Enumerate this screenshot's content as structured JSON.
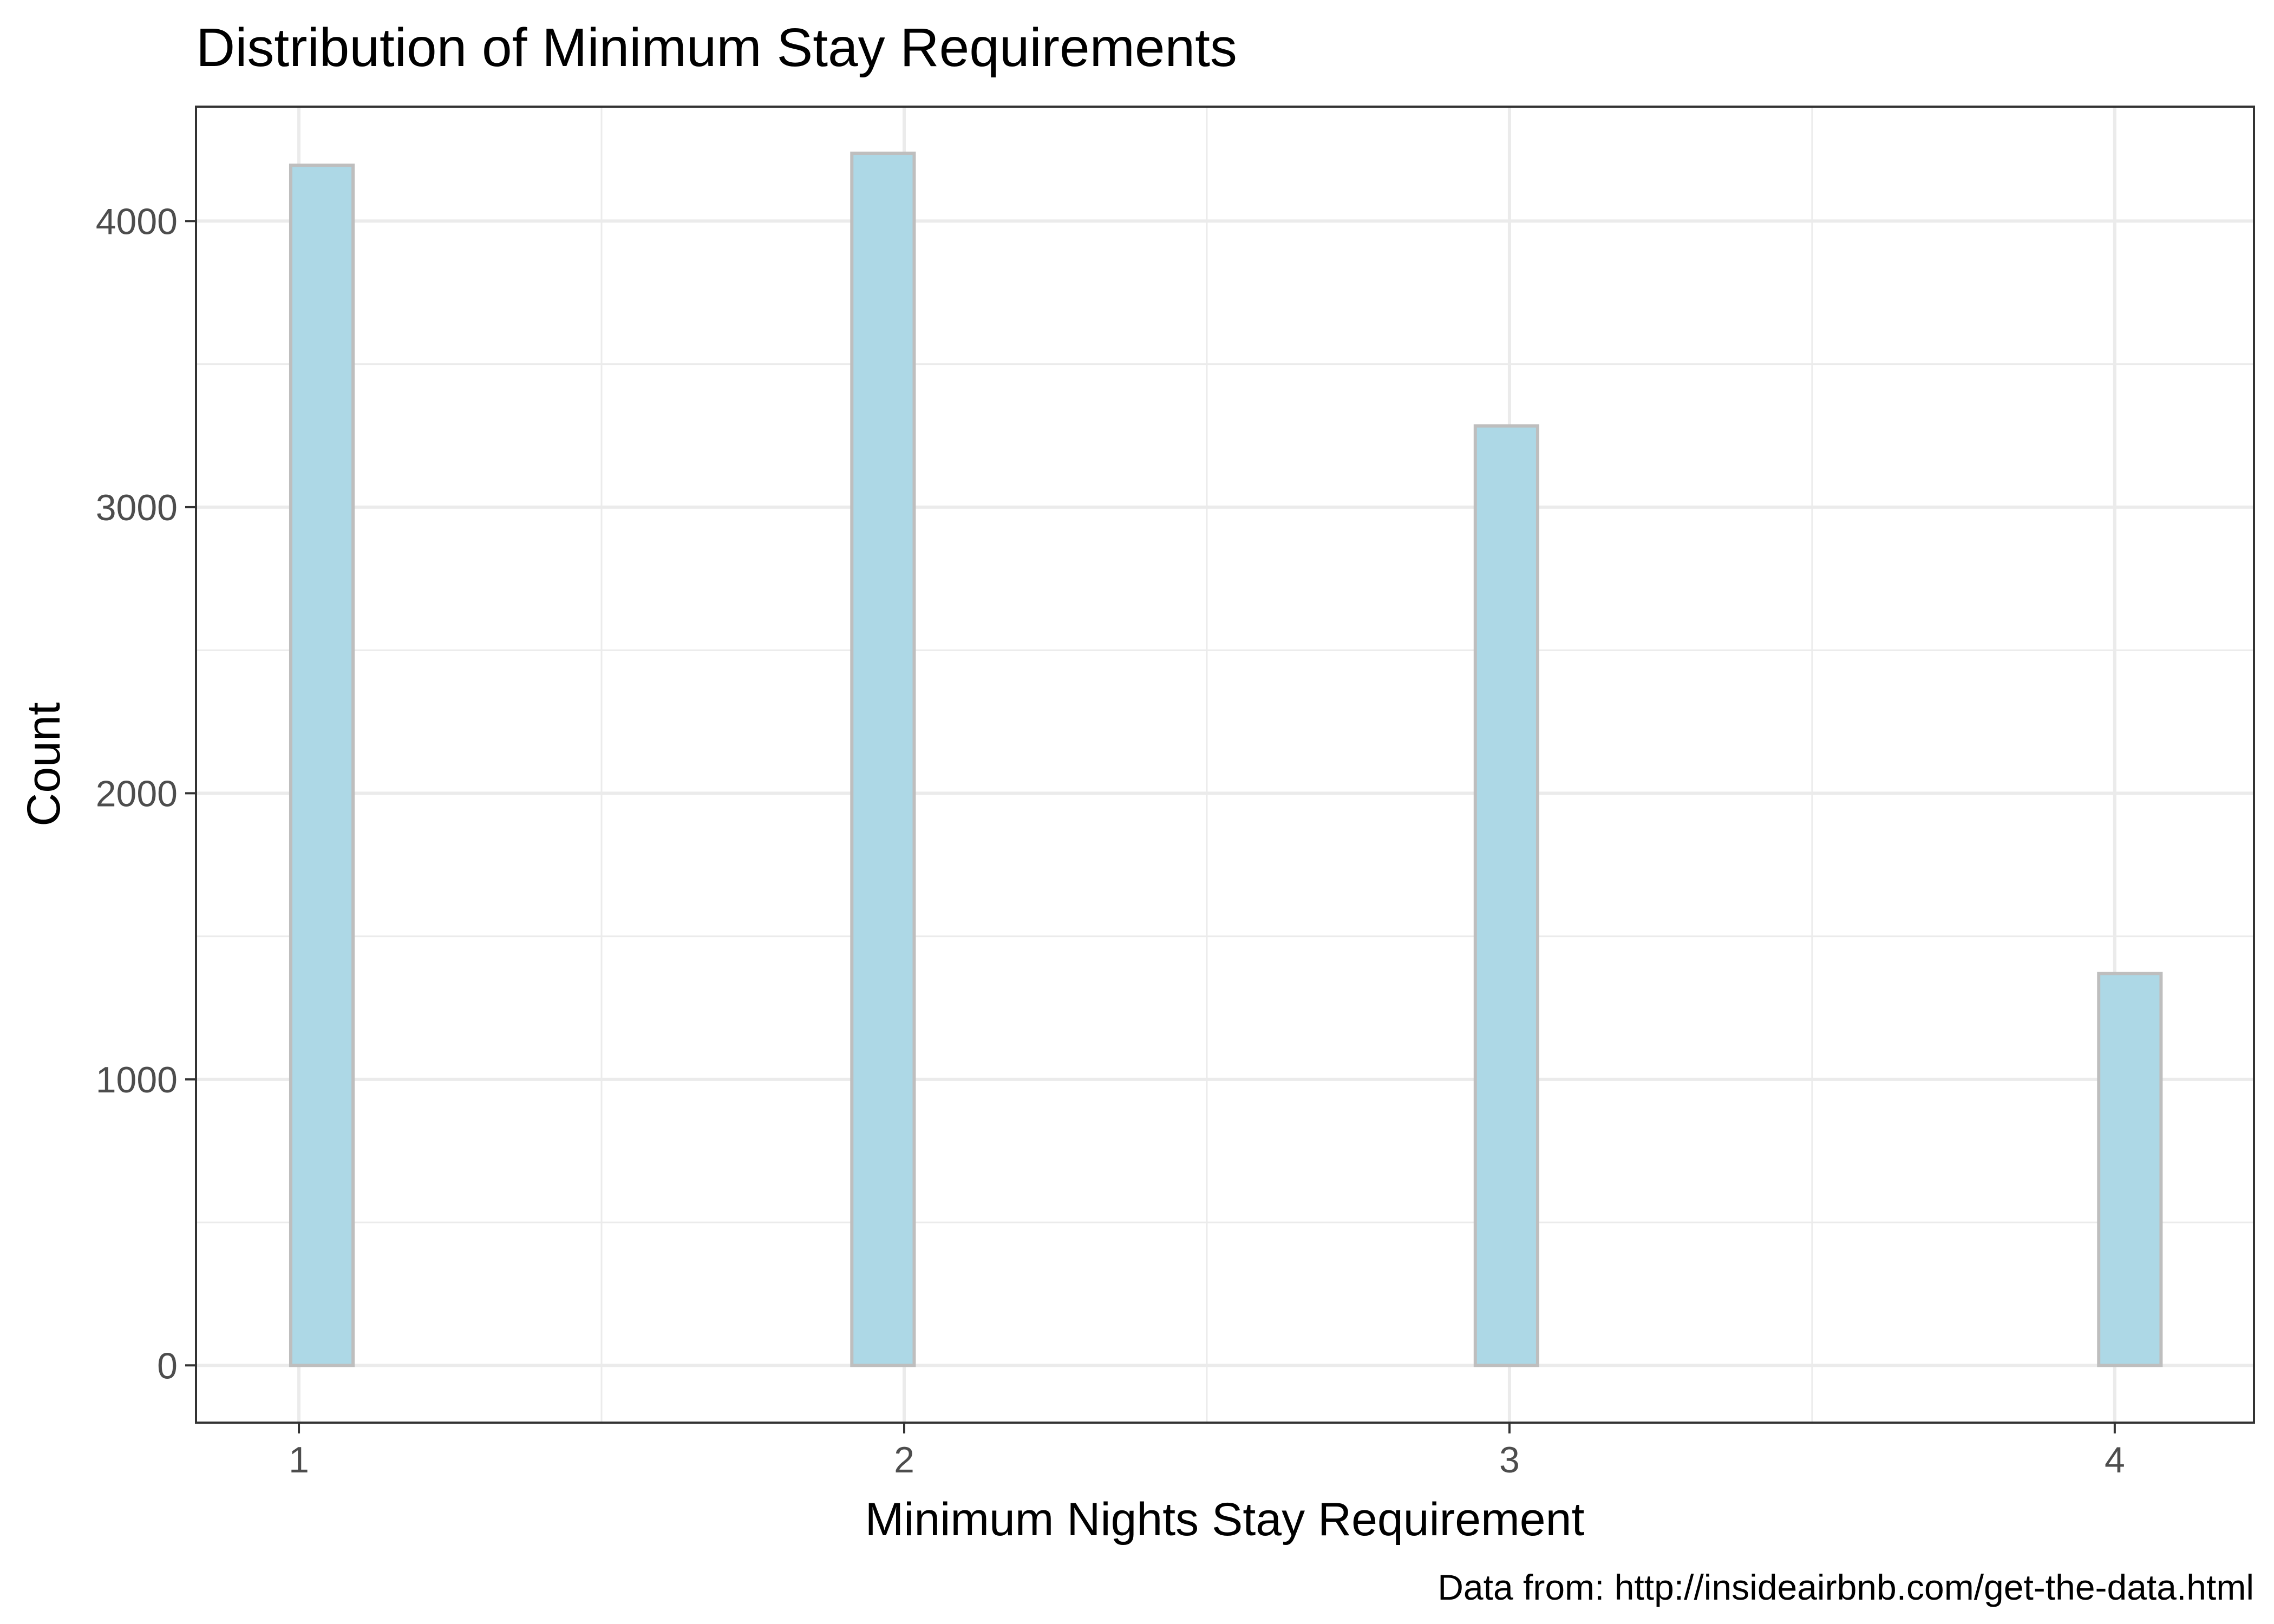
{
  "chart_data": {
    "type": "bar",
    "title": "Distribution of Minimum Stay Requirements",
    "xlabel": "Minimum Nights Stay Requirement",
    "ylabel": "Count",
    "caption": "Data from: http://insideairbnb.com/get-the-data.html",
    "x_ticks": [
      "1",
      "2",
      "3",
      "4"
    ],
    "y_ticks": [
      "0",
      "1000",
      "2000",
      "3000",
      "4000"
    ],
    "xlim": [
      0.83,
      4.23
    ],
    "ylim": [
      -200,
      4400
    ],
    "bin_width": 0.103,
    "bins": [
      {
        "x": 1.038,
        "value": 4195
      },
      {
        "x": 1.141,
        "value": 0
      },
      {
        "x": 1.244,
        "value": 0
      },
      {
        "x": 1.347,
        "value": 0
      },
      {
        "x": 1.45,
        "value": 0
      },
      {
        "x": 1.553,
        "value": 0
      },
      {
        "x": 1.656,
        "value": 0
      },
      {
        "x": 1.759,
        "value": 0
      },
      {
        "x": 1.862,
        "value": 0
      },
      {
        "x": 1.965,
        "value": 4237
      },
      {
        "x": 2.068,
        "value": 0
      },
      {
        "x": 2.171,
        "value": 0
      },
      {
        "x": 2.274,
        "value": 0
      },
      {
        "x": 2.377,
        "value": 0
      },
      {
        "x": 2.48,
        "value": 0
      },
      {
        "x": 2.583,
        "value": 0
      },
      {
        "x": 2.686,
        "value": 0
      },
      {
        "x": 2.789,
        "value": 0
      },
      {
        "x": 2.892,
        "value": 0
      },
      {
        "x": 2.995,
        "value": 3284
      },
      {
        "x": 3.098,
        "value": 0
      },
      {
        "x": 3.201,
        "value": 0
      },
      {
        "x": 3.304,
        "value": 0
      },
      {
        "x": 3.407,
        "value": 0
      },
      {
        "x": 3.51,
        "value": 0
      },
      {
        "x": 3.613,
        "value": 0
      },
      {
        "x": 3.716,
        "value": 0
      },
      {
        "x": 3.819,
        "value": 0
      },
      {
        "x": 3.922,
        "value": 0
      },
      {
        "x": 4.025,
        "value": 1370
      }
    ],
    "grid": true,
    "bar_fill": "#add8e6",
    "bar_outline": "#bebebe",
    "grid_color": "#ebebeb",
    "panel_border": "#333333"
  }
}
